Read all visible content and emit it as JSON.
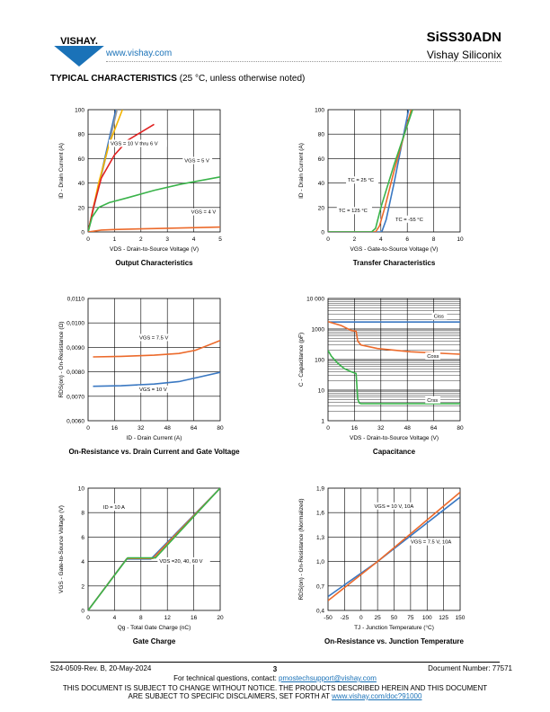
{
  "header": {
    "logo_text": "VISHAY.",
    "website": "www.vishay.com",
    "part_number": "SiSS30ADN",
    "company": "Vishay Siliconix"
  },
  "section": {
    "title": "TYPICAL CHARACTERISTICS",
    "subtitle": "(25 °C, unless otherwise noted)"
  },
  "colors": {
    "blue": "#3a78c2",
    "orange": "#ec6a2b",
    "green": "#3ab34a",
    "yellow": "#f4b400",
    "red": "#e02020",
    "gray": "#9a9a9a",
    "link": "#1a72b8"
  },
  "chart_data": [
    {
      "id": "output",
      "type": "line",
      "title": "Output Characteristics",
      "xlabel": "VDS - Drain-to-Source Voltage (V)",
      "ylabel": "ID - Drain Current (A)",
      "xlim": [
        0,
        5
      ],
      "ylim": [
        0,
        100
      ],
      "xticks": [
        "0",
        "1",
        "2",
        "3",
        "4",
        "5"
      ],
      "yticks": [
        "0",
        "20",
        "40",
        "60",
        "80",
        "100"
      ],
      "series": [
        {
          "color": "blue",
          "x": [
            0,
            1.05
          ],
          "y": [
            0,
            100
          ]
        },
        {
          "color": "gray",
          "x": [
            0,
            1.1
          ],
          "y": [
            0,
            100
          ]
        },
        {
          "color": "yellow",
          "x": [
            0,
            0.4,
            0.8,
            1.3
          ],
          "y": [
            0,
            40,
            72,
            100
          ]
        },
        {
          "color": "red",
          "x": [
            0,
            0.2,
            0.5,
            1,
            1.5,
            2.5
          ],
          "y": [
            0,
            20,
            44,
            63,
            75,
            88
          ]
        },
        {
          "color": "green",
          "x": [
            0,
            0.15,
            0.4,
            0.8,
            1.5,
            2.5,
            3.5,
            5
          ],
          "y": [
            0,
            12,
            20,
            24,
            28,
            34,
            39,
            45
          ]
        },
        {
          "color": "orange",
          "x": [
            0,
            0.5,
            1,
            2,
            3,
            5
          ],
          "y": [
            0,
            1.5,
            2,
            2.5,
            3,
            4
          ]
        }
      ],
      "annotations": [
        {
          "text": "VGS = 10 V thru 6 V",
          "x": 0.85,
          "y": 71
        },
        {
          "text": "VGS = 5 V",
          "x": 3.65,
          "y": 57
        },
        {
          "text": "VGS = 4 V",
          "x": 3.9,
          "y": 15
        }
      ]
    },
    {
      "id": "transfer",
      "type": "line",
      "title": "Transfer Characteristics",
      "xlabel": "VGS - Gate-to-Source Voltage (V)",
      "ylabel": "ID - Drain Current (A)",
      "xlim": [
        0,
        10
      ],
      "ylim": [
        0,
        100
      ],
      "xticks": [
        "0",
        "2",
        "4",
        "6",
        "8",
        "10"
      ],
      "yticks": [
        "0",
        "20",
        "40",
        "60",
        "80",
        "100"
      ],
      "series": [
        {
          "color": "blue",
          "x": [
            0,
            4.0,
            4.1,
            4.4,
            5,
            6.1
          ],
          "y": [
            0,
            0,
            1,
            10,
            40,
            100
          ]
        },
        {
          "color": "orange",
          "x": [
            0,
            3.6,
            3.9,
            4.3,
            5,
            6.3
          ],
          "y": [
            0,
            0,
            5,
            20,
            50,
            100
          ]
        },
        {
          "color": "green",
          "x": [
            0,
            3.3,
            3.6,
            4,
            5,
            6.4
          ],
          "y": [
            0,
            0,
            3,
            20,
            55,
            100
          ]
        }
      ],
      "annotations": [
        {
          "text": "TC = 25 °C",
          "x": 1.5,
          "y": 41
        },
        {
          "text": "TC = 125 °C",
          "x": 0.8,
          "y": 16
        },
        {
          "text": "TC = -55 °C",
          "x": 5.1,
          "y": 9
        }
      ]
    },
    {
      "id": "onres_id",
      "type": "line",
      "title": "On-Resistance vs. Drain Current and Gate Voltage",
      "xlabel": "ID - Drain Current (A)",
      "ylabel": "RDS(on) - On-Resistance (Ω)",
      "xlim": [
        0,
        80
      ],
      "ylim": [
        0.006,
        0.011
      ],
      "xticks": [
        "0",
        "16",
        "32",
        "48",
        "64",
        "80"
      ],
      "yticks": [
        "0,0060",
        "0,0070",
        "0,0080",
        "0,0090",
        "0,0100",
        "0,0110"
      ],
      "series": [
        {
          "color": "orange",
          "x": [
            3,
            20,
            40,
            55,
            65,
            80
          ],
          "y": [
            0.00861,
            0.00863,
            0.00868,
            0.00875,
            0.00888,
            0.00928
          ]
        },
        {
          "color": "blue",
          "x": [
            3,
            20,
            40,
            55,
            65,
            80
          ],
          "y": [
            0.00741,
            0.00743,
            0.0075,
            0.0076,
            0.00775,
            0.00798
          ]
        }
      ],
      "annotations": [
        {
          "text": "VGS = 7.5 V",
          "x": 31,
          "y": 0.00933
        },
        {
          "text": "VGS = 10 V",
          "x": 31,
          "y": 0.00722
        }
      ]
    },
    {
      "id": "capacitance",
      "type": "line",
      "title": "Capacitance",
      "xlabel": "VDS - Drain-to-Source Voltage (V)",
      "ylabel": "C - Capacitance (pF)",
      "yscale": "log",
      "xlim": [
        0,
        80
      ],
      "ylim": [
        1,
        10000
      ],
      "xticks": [
        "0",
        "16",
        "32",
        "48",
        "64",
        "80"
      ],
      "yticks": [
        "1",
        "10",
        "100",
        "1000",
        "10 000"
      ],
      "series": [
        {
          "name": "Ciss",
          "color": "blue",
          "x": [
            0,
            80
          ],
          "y": [
            1700,
            1700
          ]
        },
        {
          "name": "Coss",
          "color": "orange",
          "x": [
            0,
            8,
            14,
            17,
            18,
            20,
            30,
            50,
            80
          ],
          "y": [
            1750,
            1300,
            900,
            850,
            400,
            300,
            230,
            180,
            150
          ]
        },
        {
          "name": "Crss",
          "color": "green",
          "x": [
            0,
            2,
            6,
            10,
            14,
            17,
            18,
            19,
            20,
            80
          ],
          "y": [
            200,
            130,
            75,
            50,
            40,
            35,
            5,
            3.8,
            3.6,
            3.6
          ]
        }
      ],
      "annotations": [
        {
          "text": "Ciss",
          "x": 64,
          "y": 2300
        },
        {
          "text": "Coss",
          "x": 60,
          "y": 115
        },
        {
          "text": "Crss",
          "x": 60,
          "y": 4.2
        }
      ]
    },
    {
      "id": "gatecharge",
      "type": "line",
      "title": "Gate Charge",
      "xlabel": "Qg - Total Gate Charge (nC)",
      "ylabel": "VGS - Gate-to-Source Voltage (V)",
      "xlim": [
        0,
        20
      ],
      "ylim": [
        0,
        10
      ],
      "xticks": [
        "0",
        "4",
        "8",
        "12",
        "16",
        "20"
      ],
      "yticks": [
        "0",
        "2",
        "4",
        "6",
        "8",
        "10"
      ],
      "series": [
        {
          "color": "blue",
          "x": [
            0,
            5.8,
            9.5,
            20
          ],
          "y": [
            0,
            4.2,
            4.2,
            10
          ]
        },
        {
          "color": "orange",
          "x": [
            0,
            5.9,
            9.8,
            20
          ],
          "y": [
            0,
            4.25,
            4.25,
            10
          ]
        },
        {
          "color": "green",
          "x": [
            0,
            6.0,
            10.2,
            20
          ],
          "y": [
            0,
            4.3,
            4.3,
            10
          ]
        }
      ],
      "annotations": [
        {
          "text": "ID = 10 A",
          "x": 2.3,
          "y": 8.3
        },
        {
          "text": "VDS =20, 40, 60 V",
          "x": 10.8,
          "y": 3.9
        }
      ]
    },
    {
      "id": "onres_tj",
      "type": "line",
      "title": "On-Resistance vs. Junction Temperature",
      "xlabel": "TJ - Junction Temperature (°C)",
      "ylabel": "RDS(on) - On-Resistance (Normalized)",
      "xlim": [
        -50,
        150
      ],
      "ylim": [
        0.4,
        1.9
      ],
      "xticks": [
        "-50",
        "-25",
        "0",
        "25",
        "50",
        "75",
        "100",
        "125",
        "150"
      ],
      "yticks": [
        "0,4",
        "0,7",
        "1,0",
        "1,3",
        "1,6",
        "1,9"
      ],
      "series": [
        {
          "color": "blue",
          "x": [
            -50,
            25,
            150
          ],
          "y": [
            0.57,
            1.0,
            1.79
          ]
        },
        {
          "color": "orange",
          "x": [
            -50,
            25,
            150
          ],
          "y": [
            0.52,
            1.0,
            1.85
          ]
        }
      ],
      "annotations": [
        {
          "text": "VGS = 10 V, 10A",
          "x": 20,
          "y": 1.66
        },
        {
          "text": "VGS = 7.5 V, 10A",
          "x": 75,
          "y": 1.22
        }
      ]
    }
  ],
  "footer": {
    "doc_rev": "S24-0509-Rev. B, 20-May-2024",
    "page": "3",
    "doc_number": "Document Number: 77571",
    "contact_prefix": "For technical questions, contact: ",
    "contact_email": "pmostechsupport@vishay.com",
    "disclaimer1": "THIS DOCUMENT IS SUBJECT TO CHANGE WITHOUT NOTICE. THE PRODUCTS DESCRIBED HEREIN AND THIS DOCUMENT",
    "disclaimer2_prefix": "ARE SUBJECT TO SPECIFIC DISCLAIMERS, SET FORTH AT ",
    "disclaimer2_link": "www.vishay.com/doc?91000"
  }
}
